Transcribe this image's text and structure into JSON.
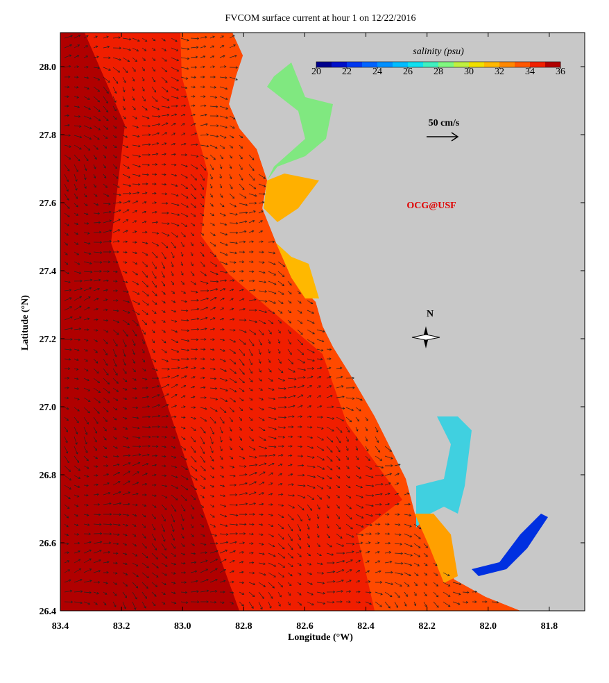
{
  "chart_data": {
    "type": "map",
    "title": "FVCOM surface current at hour 1 on 12/22/2016",
    "xlabel": "Longitude (°W)",
    "ylabel": "Latitude (°N)",
    "xlim": [
      83.4,
      81.684
    ],
    "ylim": [
      26.4,
      28.1
    ],
    "xticks": [
      83.4,
      83.2,
      {
        "value": 83.0,
        "label": "83.0"
      },
      82.8,
      82.6,
      82.4,
      82.2,
      {
        "value": 82.0,
        "label": "82.0"
      },
      81.8
    ],
    "yticks": [
      26.4,
      26.6,
      26.8,
      {
        "value": 27.0,
        "label": "27.0"
      },
      27.2,
      27.4,
      27.6,
      27.8,
      {
        "value": 28.0,
        "label": "28.0"
      }
    ],
    "colorbar": {
      "label": "salinity (psu)",
      "lim": [
        20,
        36
      ],
      "ticks": [
        20,
        22,
        24,
        26,
        28,
        30,
        32,
        34,
        36
      ],
      "colors": [
        "#00008c",
        "#0010c8",
        "#0038f0",
        "#0064ff",
        "#0090ff",
        "#00bcff",
        "#10e0f0",
        "#40f0c0",
        "#80f880",
        "#c0f040",
        "#f0e000",
        "#ffb800",
        "#ff8800",
        "#ff5800",
        "#f02000",
        "#b00000"
      ]
    },
    "scale_label": "50 cm/s",
    "credit": "OCG@USF",
    "north_label": "N"
  }
}
